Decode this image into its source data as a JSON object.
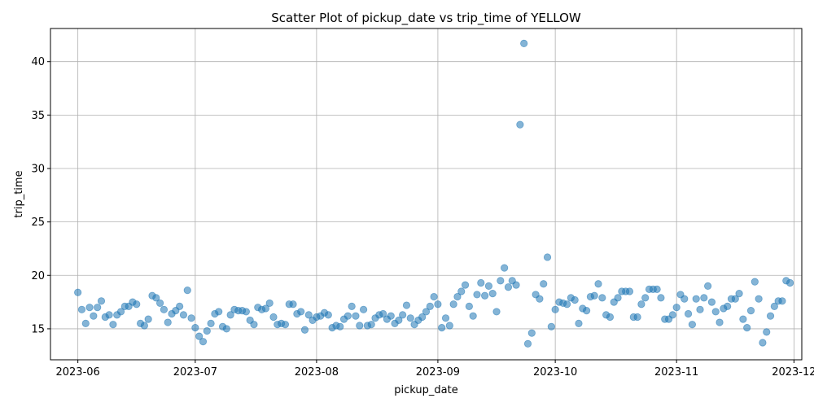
{
  "chart_data": {
    "type": "scatter",
    "title": "Scatter Plot of pickup_date vs trip_time of YELLOW",
    "xlabel": "pickup_date",
    "ylabel": "trip_time",
    "xlim": [
      "2023-05-25",
      "2023-12-03"
    ],
    "ylim": [
      12.1,
      43.1
    ],
    "x_ticks": [
      "2023-06",
      "2023-07",
      "2023-08",
      "2023-09",
      "2023-10",
      "2023-11",
      "2023-12"
    ],
    "y_ticks": [
      15,
      20,
      25,
      30,
      35,
      40
    ],
    "grid": true,
    "marker_color": "#1f77b4",
    "points": [
      [
        "2023-06-01",
        18.4
      ],
      [
        "2023-06-02",
        16.8
      ],
      [
        "2023-06-03",
        15.5
      ],
      [
        "2023-06-04",
        17.0
      ],
      [
        "2023-06-05",
        16.2
      ],
      [
        "2023-06-06",
        17.0
      ],
      [
        "2023-06-07",
        17.6
      ],
      [
        "2023-06-08",
        16.1
      ],
      [
        "2023-06-09",
        16.3
      ],
      [
        "2023-06-10",
        15.4
      ],
      [
        "2023-06-11",
        16.3
      ],
      [
        "2023-06-12",
        16.6
      ],
      [
        "2023-06-13",
        17.1
      ],
      [
        "2023-06-14",
        17.1
      ],
      [
        "2023-06-15",
        17.5
      ],
      [
        "2023-06-16",
        17.3
      ],
      [
        "2023-06-17",
        15.5
      ],
      [
        "2023-06-18",
        15.3
      ],
      [
        "2023-06-19",
        15.9
      ],
      [
        "2023-06-20",
        18.1
      ],
      [
        "2023-06-21",
        17.9
      ],
      [
        "2023-06-22",
        17.4
      ],
      [
        "2023-06-23",
        16.8
      ],
      [
        "2023-06-24",
        15.6
      ],
      [
        "2023-06-25",
        16.4
      ],
      [
        "2023-06-26",
        16.7
      ],
      [
        "2023-06-27",
        17.1
      ],
      [
        "2023-06-28",
        16.3
      ],
      [
        "2023-06-29",
        18.6
      ],
      [
        "2023-06-30",
        16.0
      ],
      [
        "2023-07-01",
        15.1
      ],
      [
        "2023-07-02",
        14.3
      ],
      [
        "2023-07-03",
        13.8
      ],
      [
        "2023-07-04",
        14.8
      ],
      [
        "2023-07-05",
        15.5
      ],
      [
        "2023-07-06",
        16.4
      ],
      [
        "2023-07-07",
        16.6
      ],
      [
        "2023-07-08",
        15.2
      ],
      [
        "2023-07-09",
        15.0
      ],
      [
        "2023-07-10",
        16.3
      ],
      [
        "2023-07-11",
        16.8
      ],
      [
        "2023-07-12",
        16.7
      ],
      [
        "2023-07-13",
        16.7
      ],
      [
        "2023-07-14",
        16.6
      ],
      [
        "2023-07-15",
        15.8
      ],
      [
        "2023-07-16",
        15.4
      ],
      [
        "2023-07-17",
        17.0
      ],
      [
        "2023-07-18",
        16.8
      ],
      [
        "2023-07-19",
        16.9
      ],
      [
        "2023-07-20",
        17.4
      ],
      [
        "2023-07-21",
        16.1
      ],
      [
        "2023-07-22",
        15.4
      ],
      [
        "2023-07-23",
        15.5
      ],
      [
        "2023-07-24",
        15.4
      ],
      [
        "2023-07-25",
        17.3
      ],
      [
        "2023-07-26",
        17.3
      ],
      [
        "2023-07-27",
        16.4
      ],
      [
        "2023-07-28",
        16.6
      ],
      [
        "2023-07-29",
        14.9
      ],
      [
        "2023-07-30",
        16.3
      ],
      [
        "2023-07-31",
        15.8
      ],
      [
        "2023-08-01",
        16.1
      ],
      [
        "2023-08-02",
        16.2
      ],
      [
        "2023-08-03",
        16.5
      ],
      [
        "2023-08-04",
        16.3
      ],
      [
        "2023-08-05",
        15.1
      ],
      [
        "2023-08-06",
        15.3
      ],
      [
        "2023-08-07",
        15.2
      ],
      [
        "2023-08-08",
        15.9
      ],
      [
        "2023-08-09",
        16.2
      ],
      [
        "2023-08-10",
        17.1
      ],
      [
        "2023-08-11",
        16.2
      ],
      [
        "2023-08-12",
        15.3
      ],
      [
        "2023-08-13",
        16.8
      ],
      [
        "2023-08-14",
        15.3
      ],
      [
        "2023-08-15",
        15.4
      ],
      [
        "2023-08-16",
        16.0
      ],
      [
        "2023-08-17",
        16.3
      ],
      [
        "2023-08-18",
        16.4
      ],
      [
        "2023-08-19",
        15.9
      ],
      [
        "2023-08-20",
        16.2
      ],
      [
        "2023-08-21",
        15.5
      ],
      [
        "2023-08-22",
        15.8
      ],
      [
        "2023-08-23",
        16.3
      ],
      [
        "2023-08-24",
        17.2
      ],
      [
        "2023-08-25",
        16.0
      ],
      [
        "2023-08-26",
        15.4
      ],
      [
        "2023-08-27",
        15.8
      ],
      [
        "2023-08-28",
        16.1
      ],
      [
        "2023-08-29",
        16.6
      ],
      [
        "2023-08-30",
        17.1
      ],
      [
        "2023-08-31",
        18.0
      ],
      [
        "2023-09-01",
        17.3
      ],
      [
        "2023-09-02",
        15.1
      ],
      [
        "2023-09-03",
        16.0
      ],
      [
        "2023-09-04",
        15.3
      ],
      [
        "2023-09-05",
        17.3
      ],
      [
        "2023-09-06",
        18.0
      ],
      [
        "2023-09-07",
        18.5
      ],
      [
        "2023-09-08",
        19.1
      ],
      [
        "2023-09-09",
        17.1
      ],
      [
        "2023-09-10",
        16.2
      ],
      [
        "2023-09-11",
        18.2
      ],
      [
        "2023-09-12",
        19.3
      ],
      [
        "2023-09-13",
        18.1
      ],
      [
        "2023-09-14",
        19.0
      ],
      [
        "2023-09-15",
        18.3
      ],
      [
        "2023-09-16",
        16.6
      ],
      [
        "2023-09-17",
        19.5
      ],
      [
        "2023-09-18",
        20.7
      ],
      [
        "2023-09-19",
        18.9
      ],
      [
        "2023-09-20",
        19.5
      ],
      [
        "2023-09-21",
        19.1
      ],
      [
        "2023-09-22",
        34.1
      ],
      [
        "2023-09-23",
        41.7
      ],
      [
        "2023-09-24",
        13.6
      ],
      [
        "2023-09-25",
        14.6
      ],
      [
        "2023-09-26",
        18.2
      ],
      [
        "2023-09-27",
        17.8
      ],
      [
        "2023-09-28",
        19.2
      ],
      [
        "2023-09-29",
        21.7
      ],
      [
        "2023-09-30",
        15.2
      ],
      [
        "2023-10-01",
        16.8
      ],
      [
        "2023-10-02",
        17.5
      ],
      [
        "2023-10-03",
        17.4
      ],
      [
        "2023-10-04",
        17.3
      ],
      [
        "2023-10-05",
        17.9
      ],
      [
        "2023-10-06",
        17.7
      ],
      [
        "2023-10-07",
        15.5
      ],
      [
        "2023-10-08",
        16.9
      ],
      [
        "2023-10-09",
        16.7
      ],
      [
        "2023-10-10",
        18.0
      ],
      [
        "2023-10-11",
        18.1
      ],
      [
        "2023-10-12",
        19.2
      ],
      [
        "2023-10-13",
        17.9
      ],
      [
        "2023-10-14",
        16.3
      ],
      [
        "2023-10-15",
        16.1
      ],
      [
        "2023-10-16",
        17.5
      ],
      [
        "2023-10-17",
        17.9
      ],
      [
        "2023-10-18",
        18.5
      ],
      [
        "2023-10-19",
        18.5
      ],
      [
        "2023-10-20",
        18.5
      ],
      [
        "2023-10-21",
        16.1
      ],
      [
        "2023-10-22",
        16.1
      ],
      [
        "2023-10-23",
        17.3
      ],
      [
        "2023-10-24",
        17.9
      ],
      [
        "2023-10-25",
        18.7
      ],
      [
        "2023-10-26",
        18.7
      ],
      [
        "2023-10-27",
        18.7
      ],
      [
        "2023-10-28",
        17.9
      ],
      [
        "2023-10-29",
        15.9
      ],
      [
        "2023-10-30",
        15.9
      ],
      [
        "2023-10-31",
        16.3
      ],
      [
        "2023-11-01",
        17.0
      ],
      [
        "2023-11-02",
        18.2
      ],
      [
        "2023-11-03",
        17.8
      ],
      [
        "2023-11-04",
        16.4
      ],
      [
        "2023-11-05",
        15.4
      ],
      [
        "2023-11-06",
        17.8
      ],
      [
        "2023-11-07",
        16.8
      ],
      [
        "2023-11-08",
        17.9
      ],
      [
        "2023-11-09",
        19.0
      ],
      [
        "2023-11-10",
        17.5
      ],
      [
        "2023-11-11",
        16.6
      ],
      [
        "2023-11-12",
        15.6
      ],
      [
        "2023-11-13",
        16.9
      ],
      [
        "2023-11-14",
        17.1
      ],
      [
        "2023-11-15",
        17.8
      ],
      [
        "2023-11-16",
        17.8
      ],
      [
        "2023-11-17",
        18.3
      ],
      [
        "2023-11-18",
        15.9
      ],
      [
        "2023-11-19",
        15.1
      ],
      [
        "2023-11-20",
        16.7
      ],
      [
        "2023-11-21",
        19.4
      ],
      [
        "2023-11-22",
        17.8
      ],
      [
        "2023-11-23",
        13.7
      ],
      [
        "2023-11-24",
        14.7
      ],
      [
        "2023-11-25",
        16.2
      ],
      [
        "2023-11-26",
        17.1
      ],
      [
        "2023-11-27",
        17.6
      ],
      [
        "2023-11-28",
        17.6
      ],
      [
        "2023-11-29",
        19.5
      ],
      [
        "2023-11-30",
        19.3
      ]
    ]
  }
}
